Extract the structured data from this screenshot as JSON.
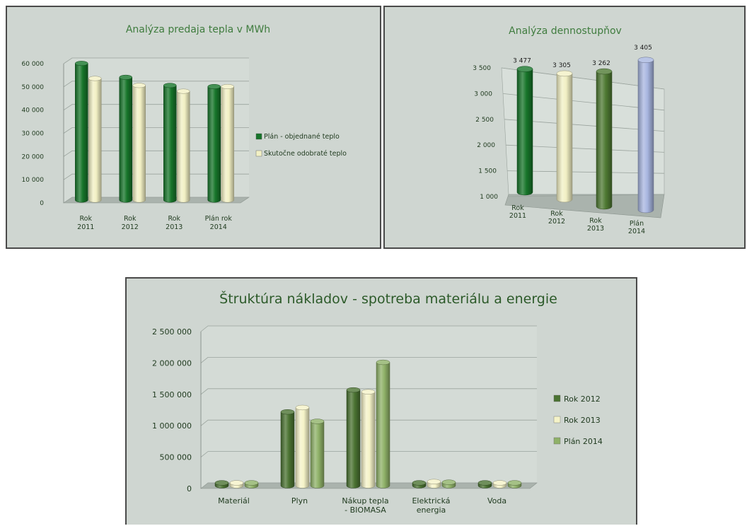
{
  "chart_data": [
    {
      "type": "bar",
      "title": "Analýza predaja tepla v MWh",
      "categories": [
        [
          "Rok",
          "2011"
        ],
        [
          "Rok",
          "2012"
        ],
        [
          "Rok",
          "2013"
        ],
        [
          "Plán rok",
          "2014"
        ]
      ],
      "series": [
        {
          "name": "Plán - objednané teplo",
          "values": [
            59500,
            53500,
            50000,
            49500
          ],
          "color": "#17752a"
        },
        {
          "name": "Skutočne odobraté teplo",
          "values": [
            53000,
            50000,
            47500,
            49500
          ],
          "color": "#f2f0c4"
        }
      ],
      "yticks": [
        "0",
        "10 000",
        "20 000",
        "30 000",
        "40 000",
        "50 000",
        "60 000"
      ],
      "ylim": [
        0,
        60000
      ],
      "legend": "right"
    },
    {
      "type": "bar",
      "title": "Analýza dennostupňov",
      "categories": [
        [
          "Rok",
          "2011"
        ],
        [
          "Rok",
          "2012"
        ],
        [
          "Rok",
          "2013"
        ],
        [
          "Plán",
          "2014"
        ]
      ],
      "values": [
        3477,
        3305,
        3262,
        3405
      ],
      "data_labels": [
        "3 477",
        "3 305",
        "3 262",
        "3 405"
      ],
      "colors": [
        "#17752a",
        "#f2f0c4",
        "#4f7a33",
        "#a8b6e0"
      ],
      "yticks": [
        "1 000",
        "1 500",
        "2 000",
        "2 500",
        "3 000",
        "3 500"
      ],
      "ylim": [
        1000,
        3500
      ]
    },
    {
      "type": "bar",
      "title": "Štruktúra nákladov - spotreba materiálu a energie",
      "categories": [
        [
          "Materiál"
        ],
        [
          "Plyn"
        ],
        [
          "Nákup tepla",
          "- BIOMASA"
        ],
        [
          "Elektrická",
          "energia"
        ],
        [
          "Voda"
        ]
      ],
      "series": [
        {
          "name": "Rok 2012",
          "values": [
            20000,
            1220000,
            1570000,
            90000,
            15000
          ],
          "color": "#4b7332"
        },
        {
          "name": "Rok 2013",
          "values": [
            25000,
            1290000,
            1540000,
            110000,
            10000
          ],
          "color": "#f5f3c8"
        },
        {
          "name": "Plán 2014",
          "values": [
            30000,
            1070000,
            2010000,
            100000,
            15000
          ],
          "color": "#8fb168"
        }
      ],
      "yticks": [
        "0",
        "500 000",
        "1 000 000",
        "1 500 000",
        "2 000 000",
        "2 500 000"
      ],
      "ylim": [
        0,
        2500000
      ],
      "legend": "right"
    }
  ]
}
